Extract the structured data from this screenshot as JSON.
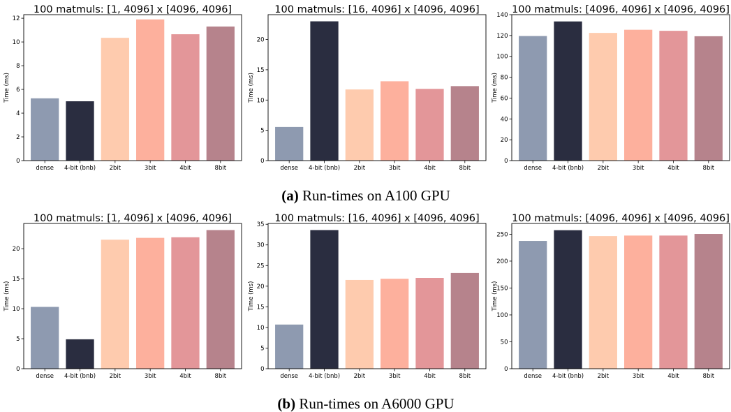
{
  "palette": [
    "#8e9ab0",
    "#2a2d40",
    "#fecbae",
    "#fdb09d",
    "#e39699",
    "#b6838c"
  ],
  "captions": [
    {
      "letter": "(a)",
      "text": " Run-times on A100 GPU"
    },
    {
      "letter": "(b)",
      "text": " Run-times on A6000 GPU"
    }
  ],
  "chart_data": [
    {
      "type": "bar",
      "title": "100 matmuls: [1, 4096] x [4096, 4096]",
      "ylabel": "Time (ms)",
      "categories": [
        "dense",
        "4-bit (bnb)",
        "2bit",
        "3bit",
        "4bit",
        "8bit"
      ],
      "values": [
        5.25,
        5.0,
        10.35,
        11.9,
        10.65,
        11.3
      ],
      "ylim": [
        0,
        12.3
      ],
      "yticks": [
        0,
        2,
        4,
        6,
        8,
        10,
        12
      ]
    },
    {
      "type": "bar",
      "title": "100 matmuls: [16, 4096] x [4096, 4096]",
      "ylabel": "Time (ms)",
      "categories": [
        "dense",
        "4-bit (bnb)",
        "2bit",
        "3bit",
        "4bit",
        "8bit"
      ],
      "values": [
        5.55,
        23.0,
        11.75,
        13.1,
        11.85,
        12.3
      ],
      "ylim": [
        0,
        24.1
      ],
      "yticks": [
        0,
        5,
        10,
        15,
        20
      ]
    },
    {
      "type": "bar",
      "title": "100 matmuls: [4096, 4096] x [4096, 4096]",
      "ylabel": "Time (ms)",
      "categories": [
        "dense",
        "4-bit (bnb)",
        "2bit",
        "3bit",
        "4bit",
        "8bit"
      ],
      "values": [
        119.5,
        133.5,
        122.5,
        125.5,
        124.5,
        119.3
      ],
      "ylim": [
        0,
        140
      ],
      "yticks": [
        0,
        20,
        40,
        60,
        80,
        100,
        120,
        140
      ]
    },
    {
      "type": "bar",
      "title": "100 matmuls: [1, 4096] x [4096, 4096]",
      "ylabel": "Time (ms)",
      "categories": [
        "dense",
        "4-bit (bnb)",
        "2bit",
        "3bit",
        "4bit",
        "8bit"
      ],
      "values": [
        10.3,
        4.9,
        21.5,
        21.8,
        21.9,
        23.1
      ],
      "ylim": [
        0,
        24.2
      ],
      "yticks": [
        0,
        5,
        10,
        15,
        20
      ]
    },
    {
      "type": "bar",
      "title": "100 matmuls: [16, 4096] x [4096, 4096]",
      "ylabel": "Time (ms)",
      "categories": [
        "dense",
        "4-bit (bnb)",
        "2bit",
        "3bit",
        "4bit",
        "8bit"
      ],
      "values": [
        10.7,
        33.6,
        21.5,
        21.8,
        22.0,
        23.2
      ],
      "ylim": [
        0,
        35.2
      ],
      "yticks": [
        0,
        5,
        10,
        15,
        20,
        25,
        30,
        35
      ]
    },
    {
      "type": "bar",
      "title": "100 matmuls: [4096, 4096] x [4096, 4096]",
      "ylabel": "Time (ms)",
      "categories": [
        "dense",
        "4-bit (bnb)",
        "2bit",
        "3bit",
        "4bit",
        "8bit"
      ],
      "values": [
        237.5,
        257.5,
        246.5,
        247.5,
        247.5,
        250.5
      ],
      "ylim": [
        0,
        270
      ],
      "yticks": [
        0,
        50,
        100,
        150,
        200,
        250
      ]
    }
  ]
}
